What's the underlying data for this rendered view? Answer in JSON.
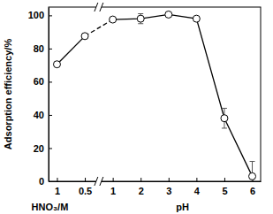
{
  "chart_data": {
    "type": "line",
    "ylabel": "Adsorption efficiency/%",
    "x_groups": [
      {
        "label": "HNO₃/M",
        "categories": [
          "1",
          "0.5"
        ]
      },
      {
        "label": "pH",
        "categories": [
          "1",
          "2",
          "3",
          "4",
          "5",
          "6"
        ]
      }
    ],
    "values": [
      70.5,
      87.5,
      97.5,
      98,
      100.5,
      98,
      38,
      3
    ],
    "errors": [
      0.5,
      0.5,
      0.8,
      3,
      0.8,
      0.8,
      6,
      9
    ],
    "color": "#000000",
    "marker": "circle",
    "ylim": [
      0,
      105
    ],
    "yticks": [
      0,
      20,
      40,
      60,
      80,
      100
    ]
  }
}
